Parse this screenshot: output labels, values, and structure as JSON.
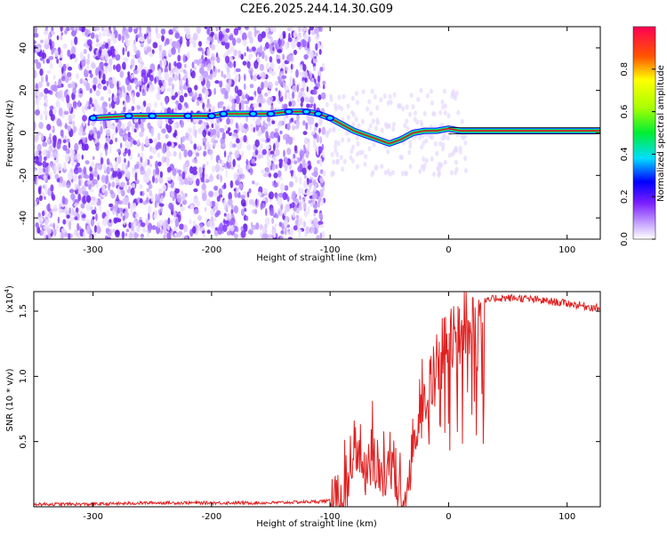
{
  "title": "C2E6.2025.244.14.30.G09",
  "chart_data": [
    {
      "type": "heatmap",
      "xlabel": "Height of straight line (km)",
      "ylabel": "Frequency (Hz)",
      "xlim": [
        -350,
        128
      ],
      "ylim": [
        -50,
        50
      ],
      "xticks": [
        -300,
        -200,
        -100,
        0,
        100
      ],
      "yticks": [
        -40,
        -20,
        0,
        20,
        40
      ],
      "noise_region": [
        -350,
        -105
      ],
      "ridge": {
        "x": [
          -300,
          -270,
          -250,
          -220,
          -200,
          -190,
          -165,
          -150,
          -135,
          -120,
          -110,
          -100,
          -90,
          -80,
          -70,
          -60,
          -50,
          -40,
          -30,
          -20,
          -10,
          0,
          10,
          20,
          50,
          128
        ],
        "y": [
          7,
          8,
          8,
          8,
          8,
          9,
          9,
          9,
          10,
          10,
          9,
          7,
          4,
          1,
          -1,
          -3,
          -5,
          -3,
          0,
          1,
          1,
          2,
          1,
          1,
          1,
          1
        ]
      },
      "colorbar": {
        "label": "Normalized spectral amplitude",
        "range": [
          0,
          1
        ],
        "ticks": [
          0.0,
          0.2,
          0.4,
          0.6,
          0.8
        ]
      }
    },
    {
      "type": "line",
      "xlabel": "Height of straight line (km)",
      "ylabel": "SNR (10 * v/v)",
      "scale_label": "(x10",
      "scale_exp": "4",
      "ylabel_unit": ")",
      "xlim": [
        -350,
        128
      ],
      "ylim": [
        0,
        1.65
      ],
      "xticks": [
        -300,
        -200,
        -100,
        0,
        100
      ],
      "yticks": [
        0.5,
        1.0,
        1.5
      ],
      "color": "#e02020",
      "x": [
        -350,
        -300,
        -250,
        -200,
        -150,
        -110,
        -95,
        -90,
        -85,
        -80,
        -75,
        -70,
        -65,
        -60,
        -55,
        -50,
        -45,
        -40,
        -35,
        -30,
        -25,
        -20,
        -15,
        -10,
        -5,
        0,
        10,
        20,
        30,
        40,
        60,
        80,
        100,
        128
      ],
      "y": [
        0.02,
        0.02,
        0.03,
        0.03,
        0.03,
        0.04,
        0.05,
        0.1,
        0.3,
        0.5,
        0.4,
        0.35,
        0.55,
        0.4,
        0.3,
        0.5,
        0.25,
        0.08,
        0.2,
        0.6,
        0.75,
        0.95,
        0.9,
        1.1,
        1.2,
        1.25,
        1.4,
        1.5,
        1.57,
        1.6,
        1.6,
        1.58,
        1.56,
        1.52
      ]
    }
  ]
}
